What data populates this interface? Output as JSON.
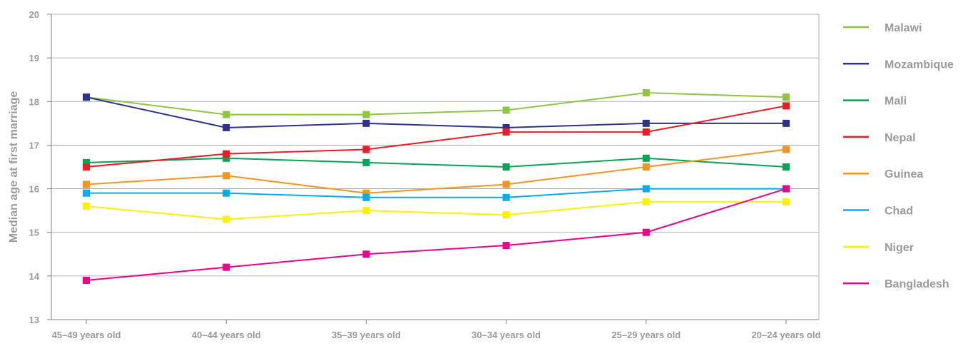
{
  "chart_data": {
    "type": "line",
    "title": "",
    "xlabel": "",
    "ylabel": "Median age at first marriage",
    "categories": [
      "45–49 years old",
      "40–44 years old",
      "35–39 years old",
      "30–34 years old",
      "25–29 years old",
      "20–24 years old"
    ],
    "ylim": [
      13,
      20
    ],
    "yticks": [
      "13",
      "14",
      "15",
      "16",
      "17",
      "18",
      "19",
      "20"
    ],
    "grid": true,
    "legend_position": "right",
    "series": [
      {
        "name": "Malawi",
        "color": "#8dc63f",
        "values": [
          18.1,
          17.7,
          17.7,
          17.8,
          18.2,
          18.1
        ]
      },
      {
        "name": "Mozambique",
        "color": "#2e3192",
        "values": [
          18.1,
          17.4,
          17.5,
          17.4,
          17.5,
          17.5
        ]
      },
      {
        "name": "Mali",
        "color": "#00a651",
        "values": [
          16.6,
          16.7,
          16.6,
          16.5,
          16.7,
          16.5
        ]
      },
      {
        "name": "Nepal",
        "color": "#ed1c24",
        "values": [
          16.5,
          16.8,
          16.9,
          17.3,
          17.3,
          17.9
        ]
      },
      {
        "name": "Guinea",
        "color": "#f7941d",
        "values": [
          16.1,
          16.3,
          15.9,
          16.1,
          16.5,
          16.9
        ]
      },
      {
        "name": "Chad",
        "color": "#00aeef",
        "values": [
          15.9,
          15.9,
          15.8,
          15.8,
          16.0,
          16.0
        ]
      },
      {
        "name": "Niger",
        "color": "#fff200",
        "values": [
          15.6,
          15.3,
          15.5,
          15.4,
          15.7,
          15.7
        ]
      },
      {
        "name": "Bangladesh",
        "color": "#ec008c",
        "values": [
          13.9,
          14.2,
          14.5,
          14.7,
          15.0,
          16.0
        ]
      }
    ]
  }
}
